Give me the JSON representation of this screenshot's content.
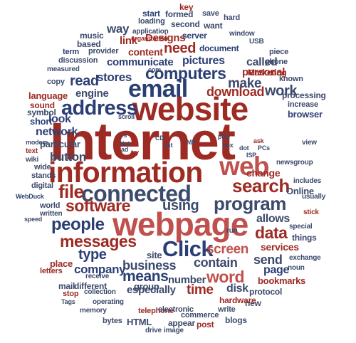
{
  "cloud": {
    "palette": {
      "red": "#9e2b23",
      "navy": "#2b3f75",
      "slate": "#3c4a6b",
      "light_red": "#c0504d",
      "blue": "#3b5f9e"
    },
    "words": [
      "Internet",
      "website",
      "webpage",
      "information",
      "connected",
      "email",
      "Click",
      "web",
      "address",
      "computers",
      "program",
      "search",
      "software",
      "file",
      "people",
      "messages",
      "data",
      "using",
      "business",
      "screen",
      "means",
      "type",
      "word",
      "company",
      "contain",
      "time",
      "download",
      "work",
      "make",
      "need",
      "read",
      "engine",
      "stores",
      "communicate",
      "pictures",
      "personal",
      "called",
      "send",
      "services",
      "page",
      "allows",
      "group",
      "especially",
      "number",
      "disk",
      "site",
      "change",
      "button",
      "network",
      "look",
      "short",
      "sound",
      "language",
      "symbol",
      "particular",
      "Designs",
      "content",
      "way",
      "link",
      "loading",
      "start",
      "key",
      "formed",
      "save",
      "hard",
      "second",
      "want",
      "application",
      "organization",
      "window",
      "music",
      "based",
      "provider",
      "server",
      "document",
      "USB",
      "term",
      "discussion",
      "measured",
      "com",
      "piece",
      "phone",
      "Marketing",
      "known",
      "processing",
      "increase",
      "browser",
      "copy",
      "letters",
      "receive",
      "place",
      "mail",
      "different",
      "stop",
      "collection",
      "Tags",
      "memory",
      "operating",
      "telephone",
      "electronic",
      "commerce",
      "write",
      "new",
      "bytes",
      "HTML",
      "drive",
      "image",
      "appear",
      "post",
      "blogs",
      "protocol",
      "hardware",
      "bookmarks",
      "exchange",
      "noun",
      "things",
      "special",
      "stick",
      "Online",
      "includes",
      "usually",
      "view",
      "newsgroup",
      "ISP",
      "PCs",
      "ask",
      "dot",
      "box",
      "play",
      "list",
      "MP",
      "CD",
      "rs",
      "Net",
      "ad",
      "try",
      "modem",
      "text",
      "wiki",
      "wide",
      "stands",
      "digital",
      "WebDuck",
      "world",
      "written",
      "speed",
      "scroll",
      "run"
    ]
  }
}
